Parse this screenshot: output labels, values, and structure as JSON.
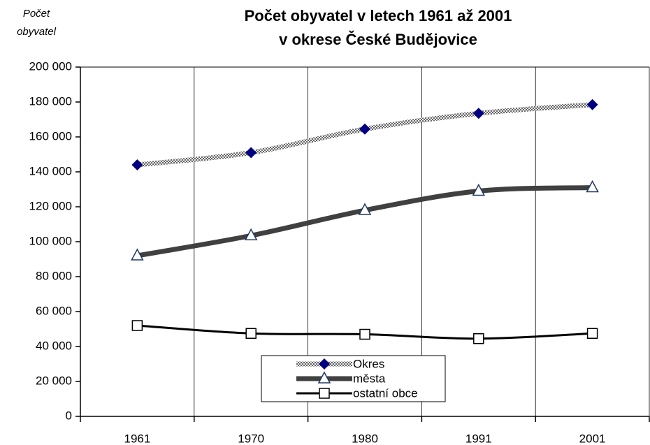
{
  "chart_data": {
    "type": "line",
    "title": [
      "Počet obyvatel v letech 1961 až 2001",
      "v okrese  České Budějovice"
    ],
    "y_label": [
      "Počet",
      "obyvatel"
    ],
    "categories": [
      "1961",
      "1970",
      "1980",
      "1991",
      "2001"
    ],
    "series": [
      {
        "name": "Okres",
        "color": "#999999",
        "marker": "diamond",
        "marker_color": "#000080",
        "values": [
          144000,
          151000,
          164500,
          173500,
          178500
        ]
      },
      {
        "name": "města",
        "color": "#404040",
        "marker": "triangle",
        "marker_color": "#1f3864",
        "values": [
          92000,
          103500,
          118000,
          129000,
          131000
        ]
      },
      {
        "name": "ostatní obce",
        "color": "#000000",
        "marker": "square",
        "marker_color": "#000000",
        "values": [
          52000,
          47500,
          47000,
          44500,
          47500
        ]
      }
    ],
    "ylim": [
      0,
      200000
    ],
    "yticks": [
      0,
      {
        "value": 20000,
        "label": "20 000"
      },
      {
        "value": 40000,
        "label": "40 000"
      },
      {
        "value": 60000,
        "label": "60 000"
      },
      {
        "value": 80000,
        "label": "80 000"
      },
      {
        "value": 100000,
        "label": "100 000"
      },
      {
        "value": 120000,
        "label": "120 000"
      },
      {
        "value": 140000,
        "label": "140 000"
      },
      {
        "value": 160000,
        "label": "160 000"
      },
      {
        "value": 180000,
        "label": "180 000"
      },
      {
        "value": 200000,
        "label": "200 000"
      }
    ],
    "grid": "x"
  }
}
